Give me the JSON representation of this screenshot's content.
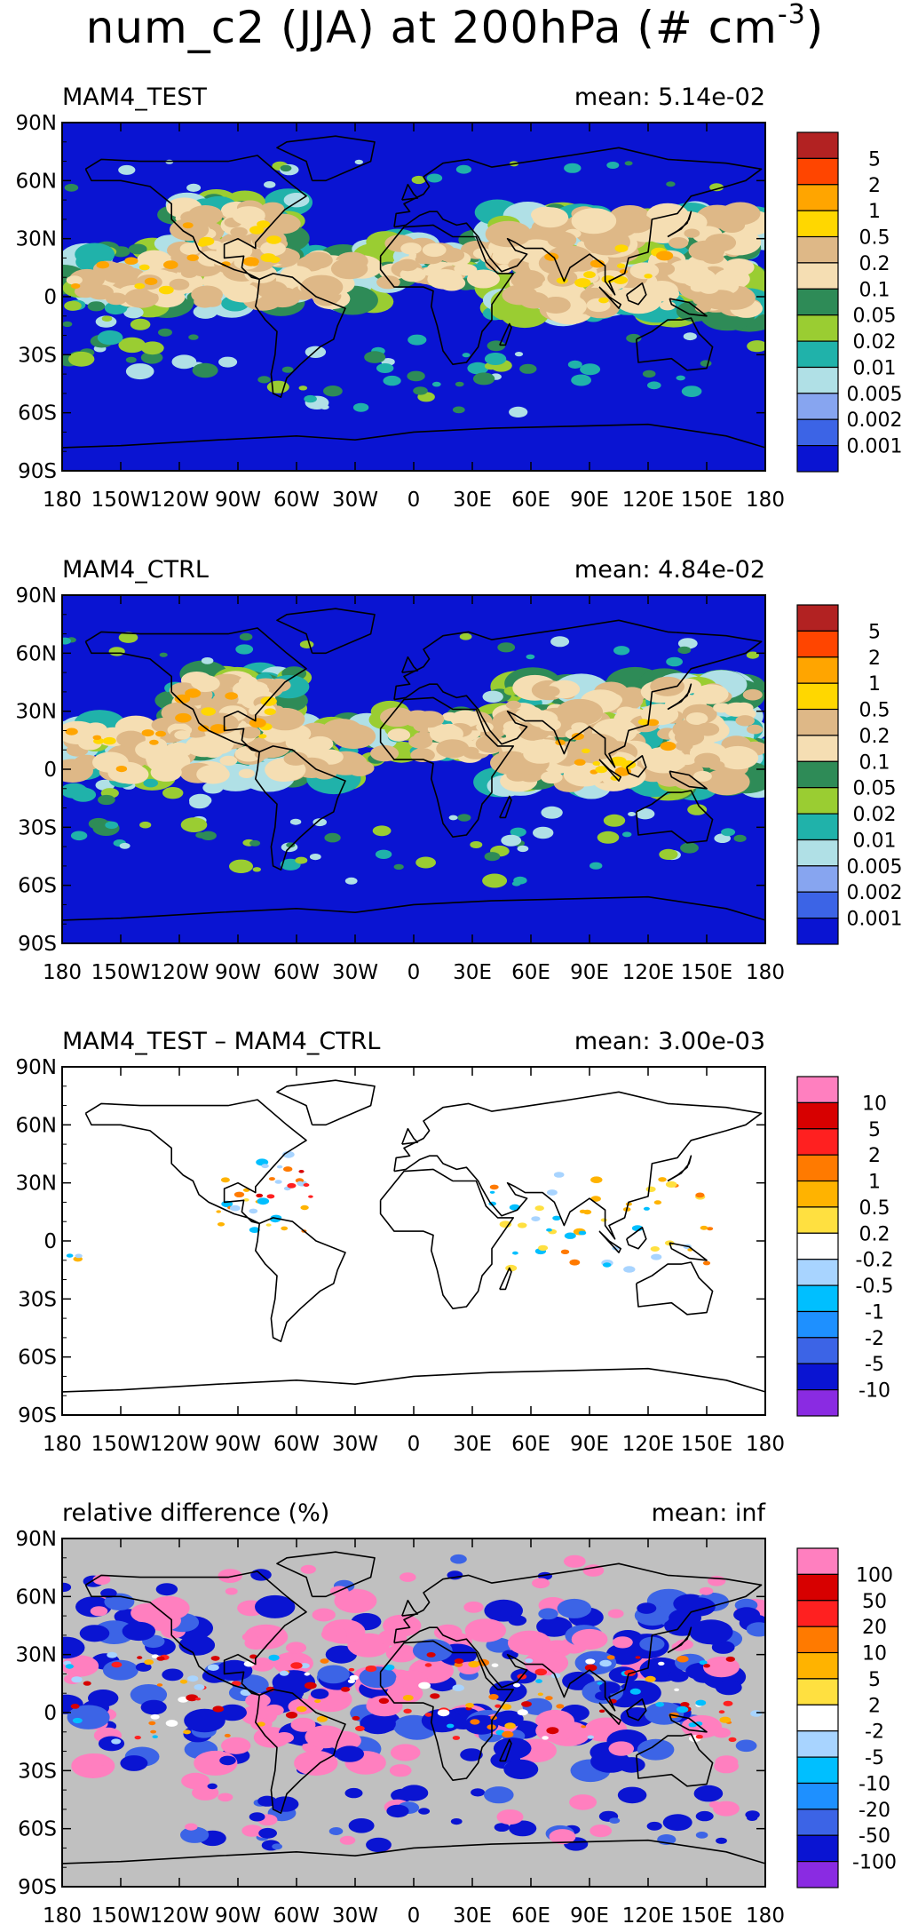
{
  "title": {
    "main": "num_c2 (JJA) at 200hPa (# cm",
    "superscript": "-3",
    "close": ")"
  },
  "chart_data": [
    {
      "type": "heatmap",
      "name": "MAM4_TEST",
      "mean_label": "mean:",
      "mean_value": "5.14e-02",
      "background": "#0a14d2",
      "x_ticks": [
        "180",
        "150W",
        "120W",
        "90W",
        "60W",
        "30W",
        "0",
        "30E",
        "60E",
        "90E",
        "120E",
        "150E",
        "180"
      ],
      "y_ticks": [
        "90N",
        "60N",
        "30N",
        "0",
        "30S",
        "60S",
        "90S"
      ],
      "xlim": [
        -180,
        180
      ],
      "ylim": [
        -90,
        90
      ],
      "legend": {
        "labels": [
          "5",
          "2",
          "1",
          "0.5",
          "0.2",
          "0.1",
          "0.05",
          "0.02",
          "0.01",
          "0.005",
          "0.002",
          "0.001"
        ],
        "colors": [
          "#b22222",
          "#ff4500",
          "#ffa500",
          "#ffd700",
          "#deb887",
          "#f5deb3",
          "#2e8b57",
          "#9acd32",
          "#20b2aa",
          "#b0e0e6",
          "#87a5f0",
          "#3c64e6",
          "#0a14d2"
        ]
      }
    },
    {
      "type": "heatmap",
      "name": "MAM4_CTRL",
      "mean_label": "mean:",
      "mean_value": "4.84e-02",
      "background": "#0a14d2",
      "x_ticks": [
        "180",
        "150W",
        "120W",
        "90W",
        "60W",
        "30W",
        "0",
        "30E",
        "60E",
        "90E",
        "120E",
        "150E",
        "180"
      ],
      "y_ticks": [
        "90N",
        "60N",
        "30N",
        "0",
        "30S",
        "60S",
        "90S"
      ],
      "xlim": [
        -180,
        180
      ],
      "ylim": [
        -90,
        90
      ],
      "legend": {
        "labels": [
          "5",
          "2",
          "1",
          "0.5",
          "0.2",
          "0.1",
          "0.05",
          "0.02",
          "0.01",
          "0.005",
          "0.002",
          "0.001"
        ],
        "colors": [
          "#b22222",
          "#ff4500",
          "#ffa500",
          "#ffd700",
          "#deb887",
          "#f5deb3",
          "#2e8b57",
          "#9acd32",
          "#20b2aa",
          "#b0e0e6",
          "#87a5f0",
          "#3c64e6",
          "#0a14d2"
        ]
      }
    },
    {
      "type": "heatmap",
      "name": "MAM4_TEST – MAM4_CTRL",
      "mean_label": "mean:",
      "mean_value": "3.00e-03",
      "background": "#ffffff",
      "x_ticks": [
        "180",
        "150W",
        "120W",
        "90W",
        "60W",
        "30W",
        "0",
        "30E",
        "60E",
        "90E",
        "120E",
        "150E",
        "180"
      ],
      "y_ticks": [
        "90N",
        "60N",
        "30N",
        "0",
        "30S",
        "60S",
        "90S"
      ],
      "xlim": [
        -180,
        180
      ],
      "ylim": [
        -90,
        90
      ],
      "legend": {
        "labels": [
          "10",
          "5",
          "2",
          "1",
          "0.5",
          "0.2",
          "-0.2",
          "-0.5",
          "-1",
          "-2",
          "-5",
          "-10"
        ],
        "colors": [
          "#ff7fbf",
          "#d70000",
          "#ff2020",
          "#ff7a00",
          "#ffb300",
          "#ffe040",
          "#ffffff",
          "#a8d4ff",
          "#00bfff",
          "#1e90ff",
          "#3c64e6",
          "#0a14d2",
          "#8a2be2"
        ]
      }
    },
    {
      "type": "heatmap",
      "name": "relative difference (%)",
      "mean_label": "mean:",
      "mean_value": "inf",
      "background": "#c0c0c0",
      "x_ticks": [
        "180",
        "150W",
        "120W",
        "90W",
        "60W",
        "30W",
        "0",
        "30E",
        "60E",
        "90E",
        "120E",
        "150E",
        "180"
      ],
      "y_ticks": [
        "90N",
        "60N",
        "30N",
        "0",
        "30S",
        "60S",
        "90S"
      ],
      "xlim": [
        -180,
        180
      ],
      "ylim": [
        -90,
        90
      ],
      "legend": {
        "labels": [
          "100",
          "50",
          "20",
          "10",
          "5",
          "2",
          "-2",
          "-5",
          "-10",
          "-20",
          "-50",
          "-100"
        ],
        "colors": [
          "#ff7fbf",
          "#d70000",
          "#ff2020",
          "#ff7a00",
          "#ffb300",
          "#ffe040",
          "#ffffff",
          "#a8d4ff",
          "#00bfff",
          "#1e90ff",
          "#3c64e6",
          "#0a14d2",
          "#8a2be2"
        ]
      }
    }
  ]
}
